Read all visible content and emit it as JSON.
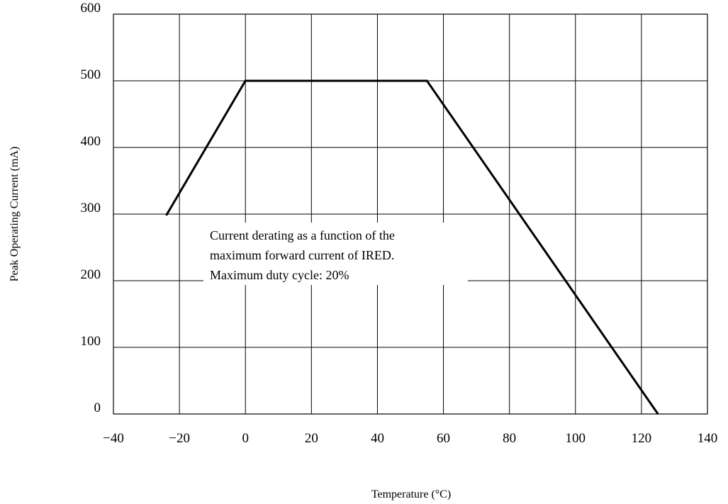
{
  "chart_data": {
    "type": "line",
    "xlabel": "Temperature (°C)",
    "ylabel": "Peak Operating Current (mA)",
    "xlim": [
      -40,
      140
    ],
    "ylim": [
      0,
      600
    ],
    "xticks": [
      -40,
      -20,
      0,
      20,
      40,
      60,
      80,
      100,
      120,
      140
    ],
    "yticks": [
      0,
      100,
      200,
      300,
      400,
      500,
      600
    ],
    "xtick_labels": [
      "−40",
      "−20",
      "0",
      "20",
      "40",
      "60",
      "80",
      "100",
      "120",
      "140"
    ],
    "ytick_labels": [
      "0",
      "100",
      "200",
      "300",
      "400",
      "500",
      "600"
    ],
    "grid": true,
    "legend": "none",
    "series": [
      {
        "color": "#000000",
        "x": [
          -24,
          0,
          55,
          125
        ],
        "y": [
          298,
          500,
          500,
          0
        ]
      }
    ],
    "annotation": {
      "lines": [
        "Current derating as a function of the",
        "maximum forward current of IRED.",
        "Maximum duty cycle: 20%"
      ]
    }
  }
}
